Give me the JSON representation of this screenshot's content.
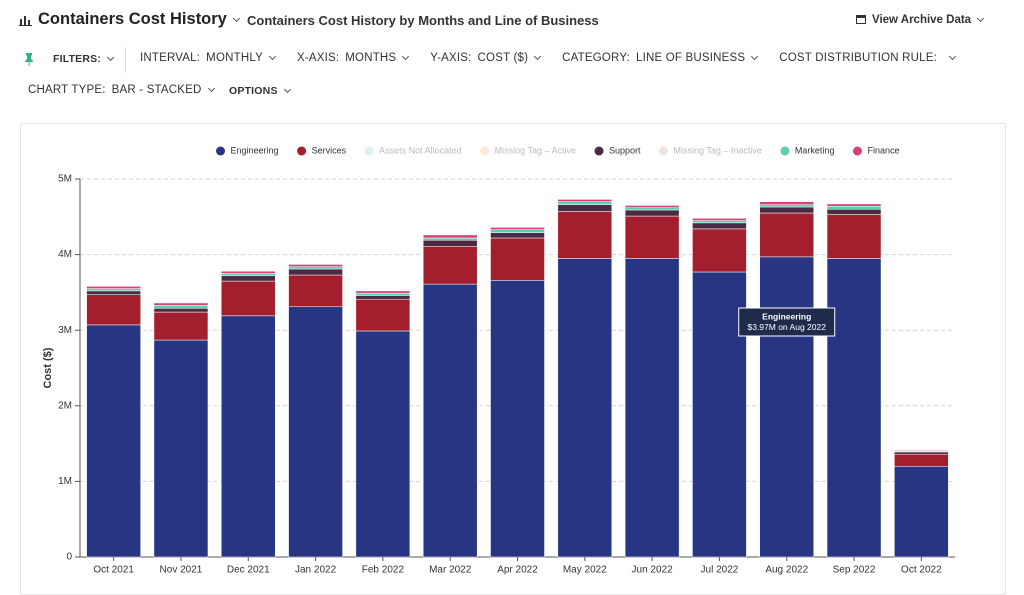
{
  "header": {
    "title": "Containers Cost History",
    "subtitle": "Containers Cost History by Months and Line of Business",
    "archive": "View Archive Data"
  },
  "toolbar": {
    "filters": "FILTERS:",
    "items": [
      {
        "label": "INTERVAL:",
        "value": "MONTHLY"
      },
      {
        "label": "X-AXIS:",
        "value": "MONTHS"
      },
      {
        "label": "Y-AXIS:",
        "value": "COST ($)"
      },
      {
        "label": "CATEGORY:",
        "value": "LINE OF BUSINESS"
      },
      {
        "label": "COST DISTRIBUTION RULE:",
        "value": ""
      }
    ],
    "chart_type": {
      "label": "CHART TYPE:",
      "value": "BAR - STACKED"
    },
    "options": "OPTIONS"
  },
  "chart_data": {
    "type": "bar",
    "stacked": true,
    "y_label": "Cost ($)",
    "grid": true,
    "categories": [
      "Oct 2021",
      "Nov 2021",
      "Dec 2021",
      "Jan 2022",
      "Feb 2022",
      "Mar 2022",
      "Apr 2022",
      "May 2022",
      "Jun 2022",
      "Jul 2022",
      "Aug 2022",
      "Sep 2022",
      "Oct 2022"
    ],
    "ylim": [
      0,
      5000000
    ],
    "yticks": [
      {
        "value": 0,
        "label": "0"
      },
      {
        "value": 1000000,
        "label": "1M"
      },
      {
        "value": 2000000,
        "label": "2M"
      },
      {
        "value": 3000000,
        "label": "3M"
      },
      {
        "value": 4000000,
        "label": "4M"
      },
      {
        "value": 5000000,
        "label": "5M"
      }
    ],
    "series": [
      {
        "name": "Engineering",
        "color": "#283583",
        "values": [
          3070000,
          2870000,
          3190000,
          3310000,
          2990000,
          3610000,
          3660000,
          3950000,
          3950000,
          3770000,
          3970000,
          3950000,
          1200000
        ]
      },
      {
        "name": "Services",
        "color": "#a31f2e",
        "values": [
          400000,
          370000,
          460000,
          420000,
          420000,
          500000,
          560000,
          620000,
          560000,
          570000,
          580000,
          580000,
          160000
        ]
      },
      {
        "name": "Assets Not Allocated",
        "color": "#c5e3ec",
        "hidden": true
      },
      {
        "name": "Missing Tag – Active",
        "color": "#fbd9b8",
        "hidden": true
      },
      {
        "name": "Support",
        "color": "#4a2b45",
        "values": [
          50000,
          50000,
          70000,
          80000,
          50000,
          80000,
          70000,
          90000,
          80000,
          80000,
          80000,
          70000,
          30000
        ]
      },
      {
        "name": "Missing Tag – Inactive",
        "color": "#e2cfc2",
        "hidden": true
      },
      {
        "name": "Marketing",
        "color": "#5ccfae",
        "values": [
          30000,
          40000,
          30000,
          30000,
          30000,
          30000,
          40000,
          40000,
          30000,
          30000,
          30000,
          40000,
          10000
        ]
      },
      {
        "name": "Finance",
        "color": "#d6417a",
        "values": [
          30000,
          30000,
          30000,
          30000,
          30000,
          40000,
          30000,
          30000,
          30000,
          30000,
          40000,
          30000,
          10000
        ]
      }
    ],
    "tooltip": {
      "title": "Engineering",
      "text": "$3.97M on Aug 2022"
    }
  }
}
